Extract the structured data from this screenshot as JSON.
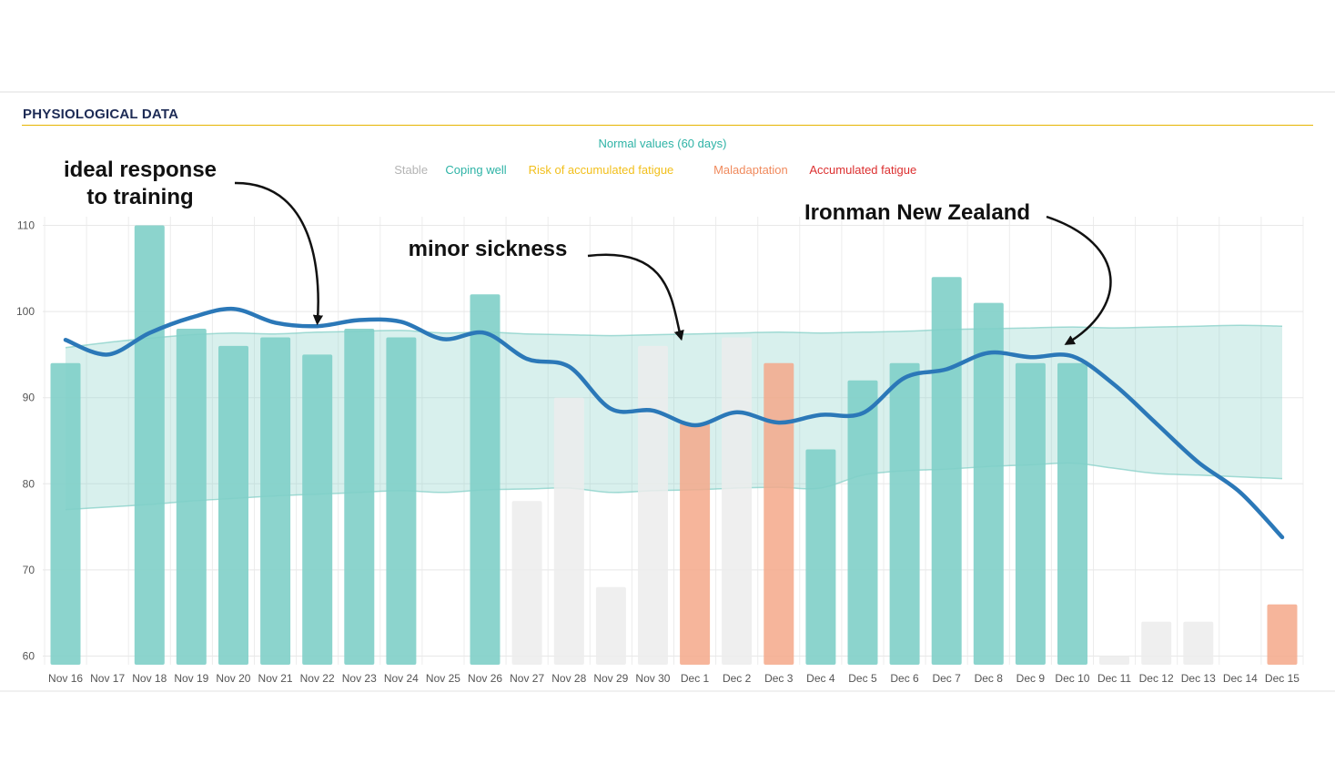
{
  "section": {
    "title": "PHYSIOLOGICAL DATA"
  },
  "chart_data": {
    "type": "bar",
    "categories": [
      "Nov 16",
      "Nov 17",
      "Nov 18",
      "Nov 19",
      "Nov 20",
      "Nov 21",
      "Nov 22",
      "Nov 23",
      "Nov 24",
      "Nov 25",
      "Nov 26",
      "Nov 27",
      "Nov 28",
      "Nov 29",
      "Nov 30",
      "Dec 1",
      "Dec 2",
      "Dec 3",
      "Dec 4",
      "Dec 5",
      "Dec 6",
      "Dec 7",
      "Dec 8",
      "Dec 9",
      "Dec 10",
      "Dec 11",
      "Dec 12",
      "Dec 13",
      "Dec 14",
      "Dec 15"
    ],
    "bars": [
      {
        "value": 94,
        "status": "coping"
      },
      {
        "value": null,
        "status": null
      },
      {
        "value": 110,
        "status": "coping"
      },
      {
        "value": 98,
        "status": "coping"
      },
      {
        "value": 96,
        "status": "coping"
      },
      {
        "value": 97,
        "status": "coping"
      },
      {
        "value": 95,
        "status": "coping"
      },
      {
        "value": 98,
        "status": "coping"
      },
      {
        "value": 97,
        "status": "coping"
      },
      {
        "value": null,
        "status": null
      },
      {
        "value": 102,
        "status": "coping"
      },
      {
        "value": 78,
        "status": "stable"
      },
      {
        "value": 90,
        "status": "stable"
      },
      {
        "value": 68,
        "status": "stable"
      },
      {
        "value": 96,
        "status": "stable"
      },
      {
        "value": 87,
        "status": "maladaptation"
      },
      {
        "value": 97,
        "status": "stable"
      },
      {
        "value": 94,
        "status": "maladaptation"
      },
      {
        "value": 84,
        "status": "coping"
      },
      {
        "value": 92,
        "status": "coping"
      },
      {
        "value": 94,
        "status": "coping"
      },
      {
        "value": 104,
        "status": "coping"
      },
      {
        "value": 101,
        "status": "coping"
      },
      {
        "value": 94,
        "status": "coping"
      },
      {
        "value": 94,
        "status": "coping"
      },
      {
        "value": 60,
        "status": "stable"
      },
      {
        "value": 64,
        "status": "stable"
      },
      {
        "value": 64,
        "status": "stable"
      },
      {
        "value": null,
        "status": null
      },
      {
        "value": 66,
        "status": "maladaptation"
      }
    ],
    "trend_line": [
      96.7,
      95.0,
      97.5,
      99.3,
      100.3,
      98.7,
      98.3,
      99.0,
      98.8,
      96.8,
      97.5,
      94.5,
      93.6,
      88.7,
      88.5,
      86.8,
      88.3,
      87.1,
      88.0,
      88.2,
      92.3,
      93.3,
      95.2,
      94.7,
      94.8,
      91.5,
      87.0,
      82.5,
      79.0,
      73.8
    ],
    "normal_band": {
      "label": "Normal values (60 days)",
      "upper": [
        95.8,
        96.4,
        96.9,
        97.3,
        97.5,
        97.4,
        97.6,
        97.7,
        97.8,
        97.5,
        97.6,
        97.4,
        97.3,
        97.2,
        97.3,
        97.4,
        97.5,
        97.6,
        97.5,
        97.6,
        97.7,
        97.9,
        98.0,
        98.1,
        98.2,
        98.1,
        98.2,
        98.3,
        98.4,
        98.3
      ],
      "lower": [
        77.0,
        77.3,
        77.6,
        78.0,
        78.3,
        78.6,
        78.8,
        79.0,
        79.2,
        79.0,
        79.3,
        79.4,
        79.5,
        79.0,
        79.2,
        79.3,
        79.5,
        79.6,
        79.5,
        81.0,
        81.5,
        81.7,
        82.0,
        82.2,
        82.4,
        81.8,
        81.2,
        81.0,
        80.8,
        80.6
      ]
    },
    "legend": [
      {
        "label": "Stable",
        "color": "#b4b4b4"
      },
      {
        "label": "Coping well",
        "color": "#2eb3a6"
      },
      {
        "label": "Risk of accumulated fatigue",
        "color": "#f2bf1b"
      },
      {
        "label": "Maladaptation",
        "color": "#f08a5d"
      },
      {
        "label": "Accumulated fatigue",
        "color": "#dc2f2f"
      }
    ],
    "legend_placement": "top-center",
    "ylim": [
      59,
      111
    ],
    "yticks": [
      60,
      70,
      80,
      90,
      100,
      110
    ],
    "grid": true,
    "colors": {
      "coping": "#7fcfc8",
      "stable": "#ececec",
      "maladaptation": "#f5a88a",
      "band_fill": "#8fd3cb",
      "band_edge": "#7fcdc4",
      "trend": "#2b78b8"
    },
    "annotations": [
      {
        "lines": [
          "ideal response",
          "to training"
        ],
        "category": "Nov 22",
        "value": 98
      },
      {
        "lines": [
          "minor sickness"
        ],
        "category": "Dec 1",
        "value": 96.3
      },
      {
        "lines": [
          "Ironman New Zealand"
        ],
        "category": "Dec 10",
        "value": 95.5
      }
    ]
  }
}
